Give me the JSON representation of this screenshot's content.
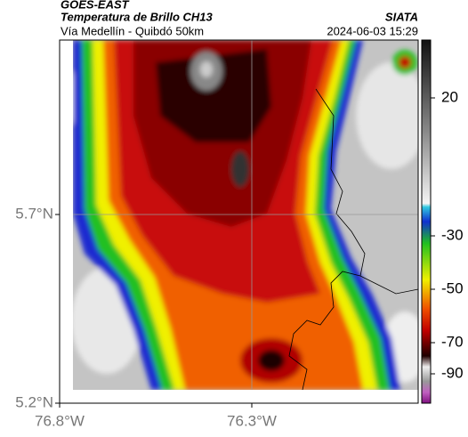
{
  "header": {
    "source": "GOES-EAST",
    "title": "Temperatura de Brillo CH13",
    "subtitle": "Vía Medellín - Quibdó 50km",
    "brand": "SIATA",
    "timestamp": "2024-06-03 15:29"
  },
  "map": {
    "lat_ticks": [
      "5.7°N",
      "5.2°N"
    ],
    "lon_ticks": [
      "76.8°W",
      "76.3°W"
    ]
  },
  "colorbar": {
    "ticks": [
      20,
      -30,
      -50,
      -70,
      -90
    ]
  }
}
